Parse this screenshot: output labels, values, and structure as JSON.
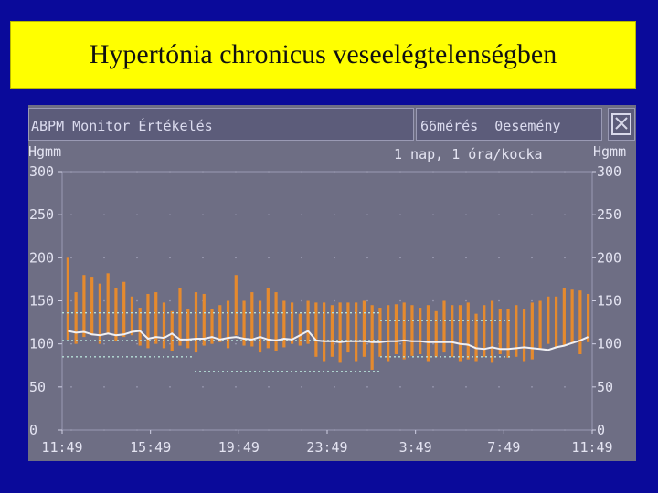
{
  "slide": {
    "title": "Hypertónia chronicus veseelégtelenségben"
  },
  "monitor": {
    "title": "ABPM Monitor Értékelés",
    "measurements": "66mérés",
    "events": "0esemény",
    "scale_note": "1 nap, 1 óra/kocka",
    "unit_left": "Hgmm",
    "unit_right": "Hgmm"
  },
  "chart_data": {
    "type": "bar",
    "y_ticks": [
      300,
      250,
      200,
      150,
      100,
      50,
      0
    ],
    "x_ticks": [
      "11:49",
      "15:49",
      "19:49",
      "23:49",
      "3:49",
      "7:49",
      "11:49"
    ],
    "ylim": [
      0,
      300
    ],
    "colors": {
      "bars": "#e58a2e",
      "mean_line": "#f0f0f4",
      "thresholds": "#b8e0d8",
      "background": "#6e6e84"
    },
    "series": [
      {
        "name": "",
        "values": [
          [
            105,
            200
          ],
          [
            100,
            160
          ],
          [
            108,
            180
          ],
          [
            110,
            178
          ],
          [
            100,
            170
          ],
          [
            112,
            182
          ],
          [
            103,
            165
          ],
          [
            108,
            172
          ],
          [
            110,
            155
          ],
          [
            98,
            142
          ],
          [
            95,
            158
          ],
          [
            100,
            160
          ],
          [
            95,
            148
          ],
          [
            92,
            138
          ],
          [
            98,
            165
          ],
          [
            95,
            140
          ],
          [
            90,
            160
          ],
          [
            98,
            158
          ],
          [
            100,
            140
          ],
          [
            102,
            145
          ],
          [
            95,
            150
          ],
          [
            110,
            180
          ],
          [
            98,
            150
          ],
          [
            97,
            160
          ],
          [
            90,
            150
          ],
          [
            95,
            165
          ],
          [
            92,
            160
          ],
          [
            96,
            150
          ],
          [
            100,
            148
          ],
          [
            98,
            135
          ],
          [
            100,
            150
          ],
          [
            85,
            148
          ],
          [
            80,
            148
          ],
          [
            85,
            145
          ],
          [
            78,
            148
          ],
          [
            90,
            148
          ],
          [
            80,
            148
          ],
          [
            85,
            150
          ],
          [
            70,
            145
          ],
          [
            85,
            142
          ],
          [
            80,
            145
          ],
          [
            88,
            146
          ],
          [
            82,
            148
          ],
          [
            86,
            145
          ],
          [
            88,
            142
          ],
          [
            80,
            145
          ],
          [
            85,
            138
          ],
          [
            90,
            150
          ],
          [
            85,
            145
          ],
          [
            80,
            145
          ],
          [
            82,
            148
          ],
          [
            80,
            135
          ],
          [
            85,
            145
          ],
          [
            78,
            150
          ],
          [
            88,
            140
          ],
          [
            84,
            140
          ],
          [
            85,
            145
          ],
          [
            80,
            140
          ],
          [
            82,
            148
          ],
          [
            95,
            150
          ],
          [
            100,
            155
          ],
          [
            95,
            155
          ],
          [
            98,
            165
          ],
          [
            100,
            163
          ],
          [
            88,
            162
          ],
          [
            102,
            158
          ]
        ]
      },
      {
        "name": "",
        "values": [
          115,
          113,
          114,
          111,
          110,
          112,
          110,
          111,
          114,
          115,
          106,
          108,
          107,
          112,
          105,
          105,
          106,
          106,
          108,
          105,
          107,
          108,
          106,
          105,
          108,
          105,
          104,
          106,
          105,
          110,
          115,
          104,
          103,
          103,
          102,
          103,
          103,
          103,
          102,
          102,
          103,
          103,
          104,
          103,
          103,
          102,
          102,
          102,
          102,
          100,
          99,
          95,
          94,
          96,
          94,
          94,
          95,
          96,
          95,
          94,
          93,
          96,
          98,
          101,
          104,
          108
        ]
      },
      {
        "name": "",
        "values": [
          [
            [
              0,
              136
            ],
            [
              60,
              136
            ]
          ],
          [
            [
              60,
              127
            ],
            [
              85,
              127
            ]
          ],
          [
            [
              0,
              104
            ],
            [
              60,
              104
            ]
          ],
          [
            [
              0,
              85
            ],
            [
              25,
              85
            ]
          ],
          [
            [
              25,
              68
            ],
            [
              60,
              68
            ]
          ],
          [
            [
              60,
              85
            ],
            [
              85,
              85
            ]
          ]
        ]
      }
    ]
  }
}
